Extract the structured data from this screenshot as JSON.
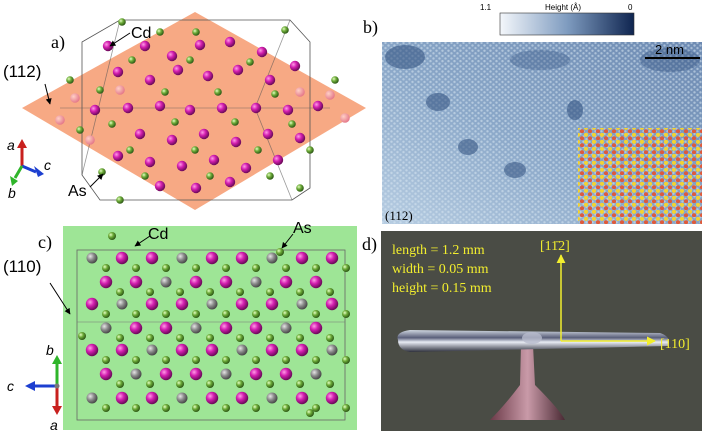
{
  "panels": {
    "a": {
      "label": "a)",
      "plane": "(112)",
      "atom_cd": "Cd",
      "atom_as": "As",
      "axes": {
        "a": "a",
        "b": "b",
        "c": "c"
      }
    },
    "b": {
      "label": "b)",
      "colorbar_max": "1.1",
      "colorbar_title": "Height (Å)",
      "colorbar_min": "0",
      "scalebar": "2 nm",
      "plane": "(112)"
    },
    "c": {
      "label": "c)",
      "plane": "(110)",
      "atom_cd": "Cd",
      "atom_as": "As",
      "axes": {
        "a": "a",
        "b": "b",
        "c": "c"
      }
    },
    "d": {
      "label": "d)",
      "length": "length = 1.2 mm",
      "width": "width = 0.05 mm",
      "height": "height = 0.15 mm",
      "dir_up": "[11̄2]",
      "dir_right": "[110]"
    }
  },
  "colors": {
    "cd": "#c2189c",
    "as": "#6aa336",
    "gray_atom": "#8a8a8a",
    "plane_a": "#f6a27a",
    "plane_c": "#9ee596",
    "stm_dark": "#2f4f7e",
    "stm_light": "#a9c1d9",
    "photo_bg": "#4a4c45",
    "yellow": "#f2ee2e"
  }
}
